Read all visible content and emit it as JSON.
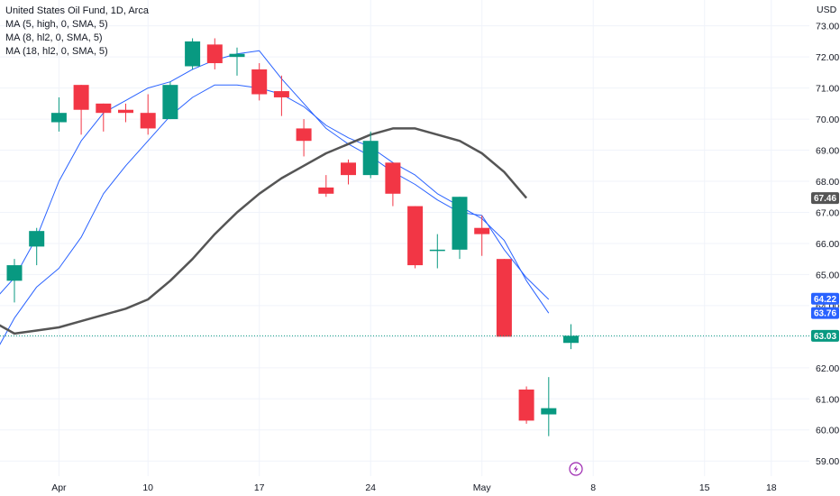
{
  "chart_data": {
    "type": "candlestick",
    "title": "United States Oil Fund, 1D, Arca",
    "currency": "USD",
    "legend": [
      "MA (5, high, 0, SMA, 5)",
      "MA (8, hl2, 0, SMA, 5)",
      "MA (18, hl2, 0, SMA, 5)"
    ],
    "y_ticks": [
      "73.00",
      "72.00",
      "71.00",
      "70.00",
      "69.00",
      "68.00",
      "67.00",
      "66.00",
      "65.00",
      "64.00",
      "63.00",
      "62.00",
      "61.00",
      "60.00",
      "59.00"
    ],
    "ylim": [
      58.6,
      73.6
    ],
    "x_ticks": [
      {
        "label": "Apr",
        "bar": 2
      },
      {
        "label": "10",
        "bar": 6
      },
      {
        "label": "17",
        "bar": 11
      },
      {
        "label": "24",
        "bar": 16
      },
      {
        "label": "May",
        "bar": 21
      },
      {
        "label": "8",
        "bar": 26
      },
      {
        "label": "15",
        "bar": 31
      },
      {
        "label": "18",
        "bar": 34
      }
    ],
    "candles": [
      {
        "o": 64.8,
        "h": 65.5,
        "l": 64.1,
        "c": 65.3
      },
      {
        "o": 65.9,
        "h": 66.5,
        "l": 65.3,
        "c": 66.4
      },
      {
        "o": 69.9,
        "h": 70.7,
        "l": 69.6,
        "c": 70.2
      },
      {
        "o": 71.1,
        "h": 71.1,
        "l": 69.5,
        "c": 70.3
      },
      {
        "o": 70.5,
        "h": 70.5,
        "l": 69.6,
        "c": 70.2
      },
      {
        "o": 70.3,
        "h": 70.5,
        "l": 69.9,
        "c": 70.2
      },
      {
        "o": 70.2,
        "h": 70.8,
        "l": 69.5,
        "c": 69.7
      },
      {
        "o": 70.0,
        "h": 71.2,
        "l": 70.0,
        "c": 71.1
      },
      {
        "o": 71.7,
        "h": 72.6,
        "l": 71.6,
        "c": 72.5
      },
      {
        "o": 72.4,
        "h": 72.6,
        "l": 71.6,
        "c": 71.8
      },
      {
        "o": 72.0,
        "h": 72.3,
        "l": 71.4,
        "c": 72.1
      },
      {
        "o": 71.6,
        "h": 71.8,
        "l": 70.6,
        "c": 70.8
      },
      {
        "o": 70.9,
        "h": 71.4,
        "l": 70.1,
        "c": 70.7
      },
      {
        "o": 69.7,
        "h": 70.0,
        "l": 68.8,
        "c": 69.3
      },
      {
        "o": 67.8,
        "h": 68.2,
        "l": 67.5,
        "c": 67.6
      },
      {
        "o": 68.6,
        "h": 68.7,
        "l": 67.9,
        "c": 68.2
      },
      {
        "o": 68.2,
        "h": 69.6,
        "l": 68.1,
        "c": 69.3
      },
      {
        "o": 68.6,
        "h": 68.6,
        "l": 67.2,
        "c": 67.6
      },
      {
        "o": 67.2,
        "h": 67.2,
        "l": 65.2,
        "c": 65.3
      },
      {
        "o": 65.8,
        "h": 66.3,
        "l": 65.2,
        "c": 65.8
      },
      {
        "o": 65.8,
        "h": 67.5,
        "l": 65.5,
        "c": 67.5
      },
      {
        "o": 66.5,
        "h": 66.9,
        "l": 65.6,
        "c": 66.3
      },
      {
        "o": 65.5,
        "h": 65.5,
        "l": 63.0,
        "c": 63.0
      },
      {
        "o": 61.3,
        "h": 61.4,
        "l": 60.2,
        "c": 60.3
      },
      {
        "o": 60.5,
        "h": 61.7,
        "l": 59.8,
        "c": 60.7
      },
      {
        "o": 62.8,
        "h": 63.4,
        "l": 62.6,
        "c": 63.03
      }
    ],
    "ma_series": [
      {
        "label": "MA (5, high, 0, SMA, 5)",
        "color": "#2962ff",
        "width": 1,
        "points": [
          [
            -1,
            64.1
          ],
          [
            0,
            64.9
          ],
          [
            1,
            66.2
          ],
          [
            2,
            68.0
          ],
          [
            3,
            69.3
          ],
          [
            4,
            70.2
          ],
          [
            5,
            70.6
          ],
          [
            6,
            71.0
          ],
          [
            7,
            71.2
          ],
          [
            8,
            71.6
          ],
          [
            9,
            71.9
          ],
          [
            10,
            72.1
          ],
          [
            11,
            72.2
          ],
          [
            12,
            71.3
          ],
          [
            13,
            70.5
          ],
          [
            14,
            69.7
          ],
          [
            15,
            69.2
          ],
          [
            16,
            68.8
          ],
          [
            17,
            68.3
          ],
          [
            18,
            67.9
          ],
          [
            19,
            67.4
          ],
          [
            20,
            67.0
          ],
          [
            21,
            66.9
          ],
          [
            22,
            65.8
          ],
          [
            23,
            64.9
          ],
          [
            24,
            64.2
          ]
        ]
      },
      {
        "label": "MA (8, hl2, 0, SMA, 5)",
        "color": "#2962ff",
        "width": 1,
        "points": [
          [
            -1,
            62.3
          ],
          [
            0,
            63.6
          ],
          [
            1,
            64.6
          ],
          [
            2,
            65.2
          ],
          [
            3,
            66.2
          ],
          [
            4,
            67.6
          ],
          [
            5,
            68.5
          ],
          [
            6,
            69.3
          ],
          [
            7,
            70.1
          ],
          [
            8,
            70.7
          ],
          [
            9,
            71.1
          ],
          [
            10,
            71.1
          ],
          [
            11,
            71.0
          ],
          [
            12,
            70.8
          ],
          [
            13,
            70.4
          ],
          [
            14,
            69.8
          ],
          [
            15,
            69.4
          ],
          [
            16,
            69.1
          ],
          [
            17,
            68.6
          ],
          [
            18,
            68.2
          ],
          [
            19,
            67.6
          ],
          [
            20,
            67.2
          ],
          [
            21,
            66.8
          ],
          [
            22,
            66.1
          ],
          [
            23,
            64.8
          ],
          [
            24,
            63.76
          ]
        ]
      },
      {
        "label": "MA (18, hl2, 0, SMA, 5)",
        "color": "#555555",
        "width": 2.5,
        "points": [
          [
            -1,
            63.5
          ],
          [
            0,
            63.1
          ],
          [
            1,
            63.2
          ],
          [
            2,
            63.3
          ],
          [
            3,
            63.5
          ],
          [
            4,
            63.7
          ],
          [
            5,
            63.9
          ],
          [
            6,
            64.2
          ],
          [
            7,
            64.8
          ],
          [
            8,
            65.5
          ],
          [
            9,
            66.3
          ],
          [
            10,
            67.0
          ],
          [
            11,
            67.6
          ],
          [
            12,
            68.1
          ],
          [
            13,
            68.5
          ],
          [
            14,
            68.9
          ],
          [
            15,
            69.2
          ],
          [
            16,
            69.5
          ],
          [
            17,
            69.7
          ],
          [
            18,
            69.7
          ],
          [
            19,
            69.5
          ],
          [
            20,
            69.3
          ],
          [
            21,
            68.9
          ],
          [
            22,
            68.3
          ],
          [
            23,
            67.46
          ]
        ]
      }
    ],
    "last_price": 63.03,
    "price_badges": [
      {
        "value": 67.46,
        "label": "67.46",
        "color": "#555555"
      },
      {
        "value": 64.22,
        "label": "64.22",
        "color": "#2962ff"
      },
      {
        "value": 63.76,
        "label": "63.76",
        "color": "#2962ff"
      },
      {
        "value": 63.03,
        "label": "63.03",
        "color": "#089981"
      }
    ],
    "colors": {
      "up": "#089981",
      "down": "#f23645",
      "grid": "#f0f3fa",
      "price_line": "#089981"
    }
  }
}
